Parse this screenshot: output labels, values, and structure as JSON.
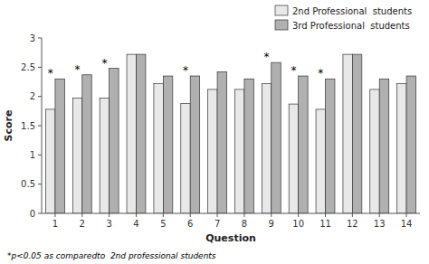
{
  "chart_data": {
    "type": "bar",
    "categories": [
      "1",
      "2",
      "3",
      "4",
      "5",
      "6",
      "7",
      "8",
      "9",
      "10",
      "11",
      "12",
      "13",
      "14"
    ],
    "series": [
      {
        "name": "2nd Professional  students",
        "color": "#e8e8e8",
        "values": [
          1.78,
          1.97,
          1.97,
          2.72,
          2.22,
          1.88,
          2.12,
          2.12,
          2.22,
          1.87,
          1.78,
          2.72,
          2.12,
          2.22
        ]
      },
      {
        "name": "3rd Professional  students",
        "color": "#b0b0b0",
        "values": [
          2.3,
          2.37,
          2.48,
          2.72,
          2.35,
          2.35,
          2.42,
          2.3,
          2.58,
          2.35,
          2.3,
          2.72,
          2.3,
          2.35
        ]
      }
    ],
    "annotations": [
      {
        "text": "*",
        "category": "1"
      },
      {
        "text": "*",
        "category": "2"
      },
      {
        "text": "*",
        "category": "3"
      },
      {
        "text": "*",
        "category": "6"
      },
      {
        "text": "*",
        "category": "9"
      },
      {
        "text": "*",
        "category": "10"
      },
      {
        "text": "*",
        "category": "11"
      }
    ],
    "x_label": "Question",
    "y_label": "Score",
    "footnote": "*p<0.05 as comparedto  2nd professional students",
    "ylim": [
      0,
      3
    ],
    "yticks": [
      0,
      0.5,
      1,
      1.5,
      2,
      2.5,
      3
    ],
    "grid": false,
    "legend": "upper right"
  }
}
